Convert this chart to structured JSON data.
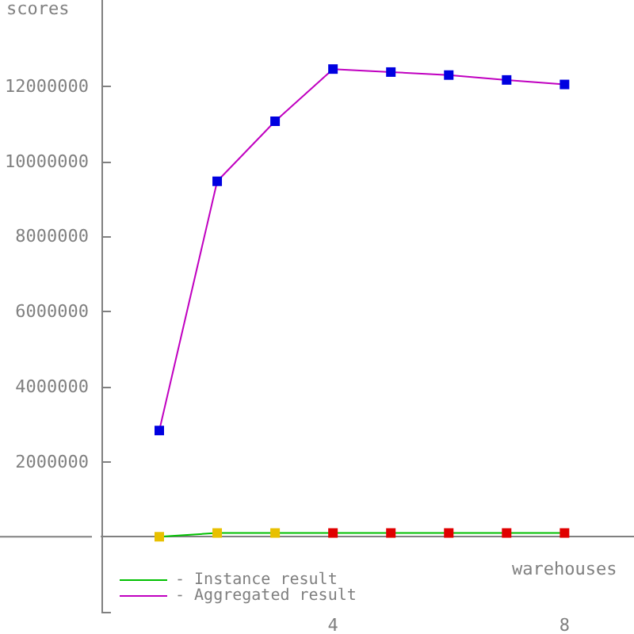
{
  "chart_data": {
    "type": "line",
    "xlabel": "warehouses",
    "ylabel": "scores",
    "x": [
      1,
      2,
      3,
      4,
      5,
      6,
      7,
      8
    ],
    "series": [
      {
        "name": "- Instance result",
        "color": "#00c000",
        "colors": [
          "#e8c000",
          "#e8c000",
          "#e8c000",
          "#e00000",
          "#e00000",
          "#e00000",
          "#e00000",
          "#e00000"
        ],
        "values": [
          0,
          100000,
          100000,
          100000,
          100000,
          100000,
          100000,
          100000
        ]
      },
      {
        "name": "- Aggregated result",
        "color": "#c000c0",
        "colors": [
          "#0000e0",
          "#0000e0",
          "#0000e0",
          "#0000e0",
          "#0000e0",
          "#0000e0",
          "#0000e0",
          "#0000e0"
        ],
        "values": [
          2830000,
          9470000,
          11070000,
          12460000,
          12380000,
          12300000,
          12170000,
          12050000
        ]
      }
    ],
    "xlim": [
      0,
      9.2
    ],
    "xticks": [
      4,
      8
    ],
    "ylim": [
      -2000000,
      14300000
    ],
    "yticks": [
      {
        "value": -2000000,
        "label": null
      },
      2000000,
      4000000,
      6000000,
      8000000,
      10000000,
      12000000
    ],
    "grid": false,
    "legend": "bottom left",
    "marker": "square",
    "line_style": "solid"
  }
}
